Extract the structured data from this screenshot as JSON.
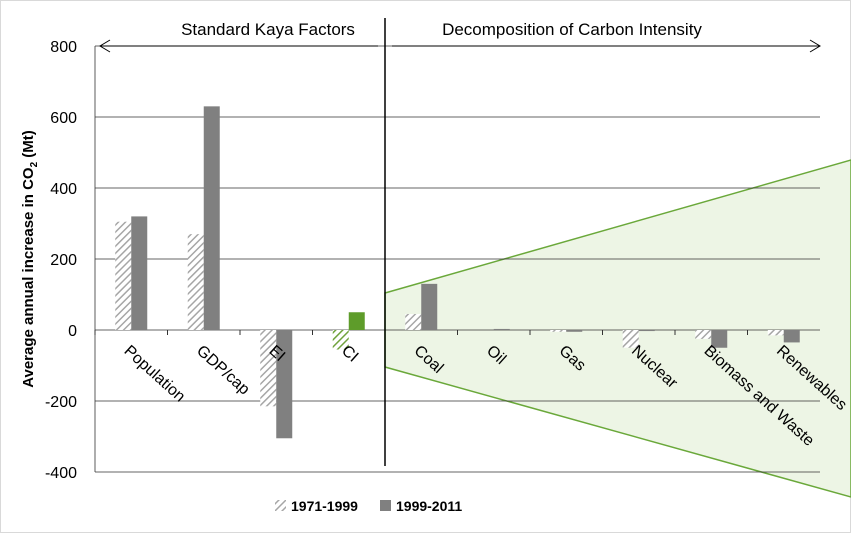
{
  "chart_data": {
    "type": "bar",
    "y_label": [
      "Average annual increase in CO",
      "2",
      " (Mt)"
    ],
    "sections": [
      "Standard Kaya Factors",
      "Decomposition of Carbon Intensity"
    ],
    "categories": [
      "Population",
      "GDP/cap",
      "EI",
      "CI",
      "Coal",
      "Oil",
      "Gas",
      "Nuclear",
      "Biomass and Waste",
      "Renewables"
    ],
    "series": [
      {
        "name": "1971-1999",
        "color": "#a6a6a6",
        "pattern": "hatch",
        "colors": [
          "#a6a6a6",
          "#a6a6a6",
          "#a6a6a6",
          "#70a33c",
          "#a6a6a6",
          "#a6a6a6",
          "#a6a6a6",
          "#a6a6a6",
          "#a6a6a6",
          "#a6a6a6"
        ],
        "values": [
          305,
          270,
          -215,
          -55,
          45,
          0,
          -5,
          -50,
          -25,
          -15
        ]
      },
      {
        "name": "1999-2011",
        "color": "#808080",
        "pattern": "solid",
        "colors": [
          "#808080",
          "#808080",
          "#808080",
          "#5e9c2a",
          "#808080",
          "#808080",
          "#808080",
          "#808080",
          "#808080",
          "#808080"
        ],
        "values": [
          320,
          630,
          -305,
          50,
          130,
          3,
          -5,
          -3,
          -50,
          -35
        ]
      }
    ],
    "ylim": [
      -400,
      800
    ],
    "yticks": [
      -400,
      -200,
      0,
      200,
      400,
      600,
      800
    ],
    "grid": true
  }
}
